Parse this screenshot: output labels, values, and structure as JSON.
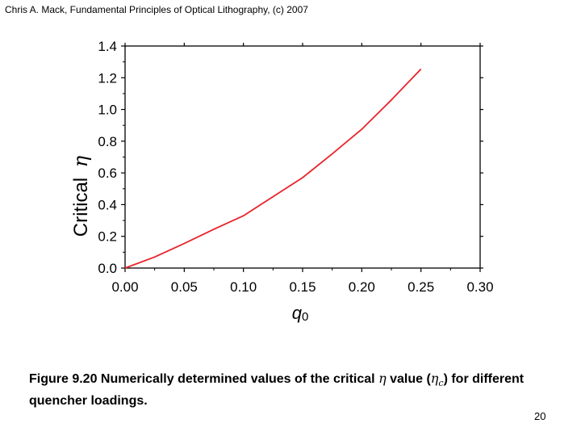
{
  "header": {
    "text": "Chris A. Mack, Fundamental Principles of Optical Lithography, (c) 2007"
  },
  "chart_data": {
    "type": "line",
    "title": "",
    "xlabel": "q",
    "xlabel_sub": "0",
    "ylabel": "Critical",
    "ylabel_symbol": "η",
    "xlim": [
      0,
      0.3
    ],
    "ylim": [
      0,
      1.4
    ],
    "xticks": [
      "0.00",
      "0.05",
      "0.10",
      "0.15",
      "0.20",
      "0.25",
      "0.30"
    ],
    "yticks": [
      "0.0",
      "0.2",
      "0.4",
      "0.6",
      "0.8",
      "1.0",
      "1.2",
      "1.4"
    ],
    "grid": false,
    "series": [
      {
        "name": "critical eta",
        "color": "#e8232a",
        "x": [
          0,
          0.025,
          0.05,
          0.075,
          0.1,
          0.125,
          0.15,
          0.175,
          0.2,
          0.225,
          0.25
        ],
        "y": [
          0,
          0.07,
          0.155,
          0.245,
          0.33,
          0.45,
          0.57,
          0.72,
          0.875,
          1.06,
          1.255
        ]
      }
    ]
  },
  "caption": {
    "prefix": "Figure 9.20  Numerically determined values of the critical",
    "eta": "η",
    "mid": "value (",
    "eta_c": "η",
    "sub": "c",
    "suffix": ") for different quencher loadings."
  },
  "page_number": "20"
}
